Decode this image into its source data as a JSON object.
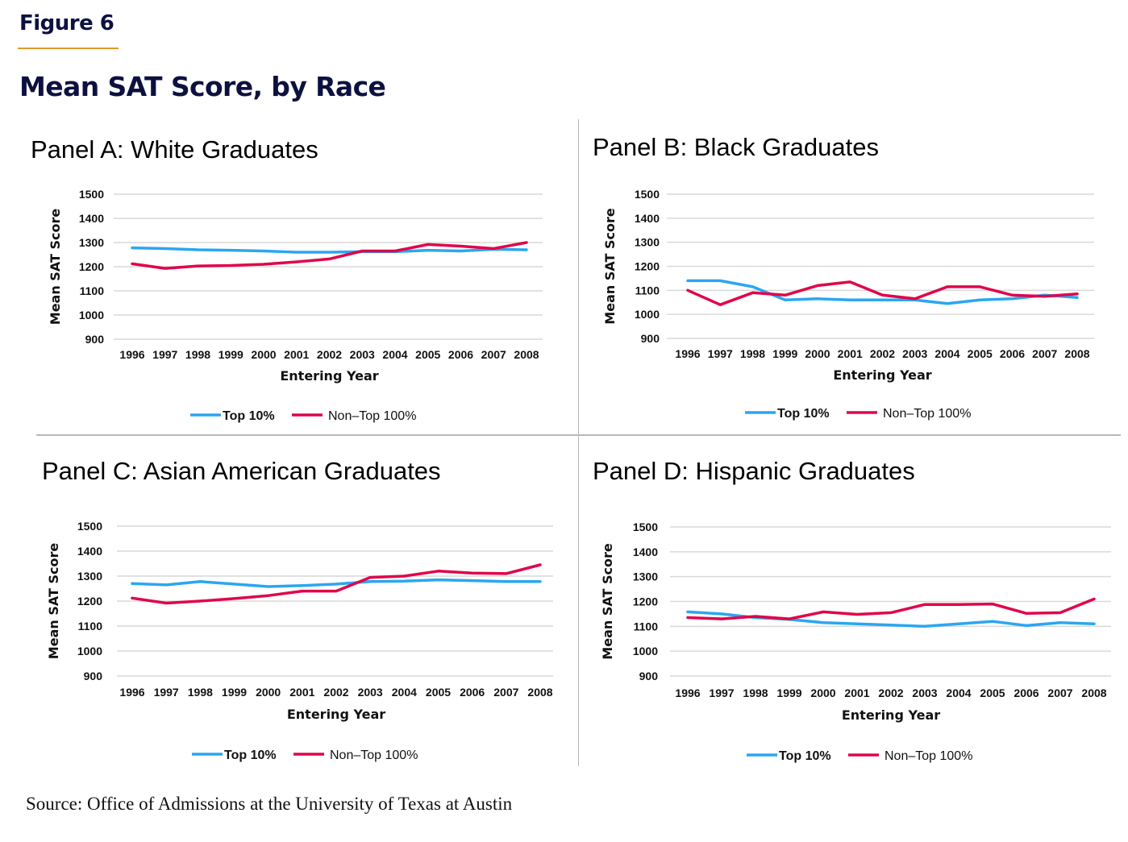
{
  "figure_label": "Figure 6",
  "figure_title": "Mean SAT Score, by Race",
  "source": "Source: Office of Admissions at the University of Texas at Austin",
  "colors": {
    "top10": "#2ba6f0",
    "non_top": "#e0054a",
    "grid": "#d9d9d9",
    "title_navy": "#0d1140",
    "accent_rule": "#e19a2c"
  },
  "chart_data": [
    {
      "type": "line",
      "title": "Panel A: White Graduates",
      "xlabel": "Entering Year",
      "ylabel": "Mean SAT Score",
      "ylim": [
        900,
        1500
      ],
      "yticks": [
        "1500",
        "1400",
        "1300",
        "1200",
        "1100",
        "1000",
        "900"
      ],
      "x": [
        "1996",
        "1997",
        "1998",
        "1999",
        "2000",
        "2001",
        "2002",
        "2003",
        "2004",
        "2005",
        "2006",
        "2007",
        "2008"
      ],
      "grid": true,
      "legend": "bottom",
      "series": [
        {
          "name": "Top 10%",
          "values": [
            1278,
            1275,
            1270,
            1268,
            1265,
            1260,
            1260,
            1262,
            1262,
            1268,
            1265,
            1272,
            1270
          ]
        },
        {
          "name": "Non–Top 100%",
          "values": [
            1212,
            1193,
            1203,
            1205,
            1210,
            1220,
            1232,
            1265,
            1265,
            1292,
            1285,
            1275,
            1300
          ]
        }
      ]
    },
    {
      "type": "line",
      "title": "Panel B: Black Graduates",
      "xlabel": "Entering Year",
      "ylabel": "Mean SAT Score",
      "ylim": [
        900,
        1500
      ],
      "yticks": [
        "1500",
        "1400",
        "1300",
        "1200",
        "1100",
        "1000",
        "900"
      ],
      "x": [
        "1996",
        "1997",
        "1998",
        "1999",
        "2000",
        "2001",
        "2002",
        "2003",
        "2004",
        "2005",
        "2006",
        "2007",
        "2008"
      ],
      "grid": true,
      "legend": "bottom",
      "series": [
        {
          "name": "Top 10%",
          "values": [
            1140,
            1140,
            1115,
            1060,
            1065,
            1060,
            1060,
            1060,
            1045,
            1060,
            1065,
            1080,
            1070
          ]
        },
        {
          "name": "Non–Top 100%",
          "values": [
            1100,
            1040,
            1090,
            1080,
            1120,
            1135,
            1080,
            1065,
            1115,
            1115,
            1080,
            1075,
            1085
          ]
        }
      ]
    },
    {
      "type": "line",
      "title": "Panel C: Asian American Graduates",
      "xlabel": "Entering Year",
      "ylabel": "Mean SAT Score",
      "ylim": [
        900,
        1500
      ],
      "yticks": [
        "1500",
        "1400",
        "1300",
        "1200",
        "1100",
        "1000",
        "900"
      ],
      "x": [
        "1996",
        "1997",
        "1998",
        "1999",
        "2000",
        "2001",
        "2002",
        "2003",
        "2004",
        "2005",
        "2006",
        "2007",
        "2008"
      ],
      "grid": true,
      "legend": "bottom",
      "series": [
        {
          "name": "Top 10%",
          "values": [
            1270,
            1265,
            1278,
            1268,
            1258,
            1262,
            1268,
            1278,
            1280,
            1285,
            1282,
            1278,
            1278
          ]
        },
        {
          "name": "Non–Top 100%",
          "values": [
            1212,
            1192,
            1200,
            1210,
            1222,
            1240,
            1240,
            1295,
            1300,
            1320,
            1312,
            1310,
            1345
          ]
        }
      ]
    },
    {
      "type": "line",
      "title": "Panel D: Hispanic Graduates",
      "xlabel": "Entering Year",
      "ylabel": "Mean SAT Score",
      "ylim": [
        900,
        1500
      ],
      "yticks": [
        "1500",
        "1400",
        "1300",
        "1200",
        "1100",
        "1000",
        "900"
      ],
      "x": [
        "1996",
        "1997",
        "1998",
        "1999",
        "2000",
        "2001",
        "2002",
        "2003",
        "2004",
        "2005",
        "2006",
        "2007",
        "2008"
      ],
      "grid": true,
      "legend": "bottom",
      "series": [
        {
          "name": "Top 10%",
          "values": [
            1158,
            1150,
            1135,
            1128,
            1115,
            1110,
            1105,
            1100,
            1110,
            1120,
            1103,
            1115,
            1110
          ]
        },
        {
          "name": "Non–Top 100%",
          "values": [
            1135,
            1130,
            1140,
            1130,
            1158,
            1148,
            1155,
            1188,
            1188,
            1190,
            1152,
            1155,
            1210
          ]
        }
      ]
    }
  ]
}
